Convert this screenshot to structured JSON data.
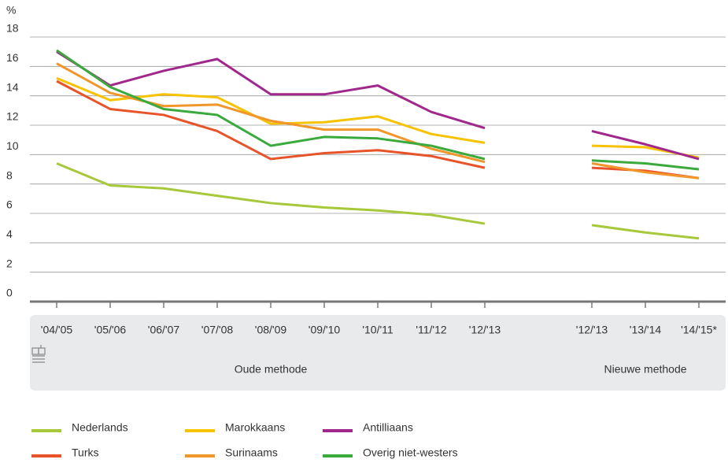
{
  "chart_data": {
    "type": "line",
    "y_label": "%",
    "categories": [
      "'04/'05",
      "'05/'06",
      "'06/'07",
      "'07/'08",
      "'08/'09",
      "'09/'10",
      "'10/'11",
      "'11/'12",
      "'12/'13",
      null,
      "'12/'13",
      "'13/'14",
      "'14/'15*"
    ],
    "series": [
      {
        "name": "Nederlands",
        "color": "#a8c83c",
        "values": [
          9.4,
          7.9,
          7.7,
          7.2,
          6.7,
          6.4,
          6.2,
          5.9,
          5.3,
          null,
          5.2,
          4.7,
          4.3
        ]
      },
      {
        "name": "Turks",
        "color": "#e8542a",
        "values": [
          15.0,
          13.1,
          12.7,
          11.6,
          9.7,
          10.1,
          10.3,
          9.9,
          9.1,
          null,
          9.1,
          8.9,
          8.4
        ]
      },
      {
        "name": "Marokkaans",
        "color": "#f7c200",
        "values": [
          15.2,
          13.7,
          14.1,
          13.9,
          12.1,
          12.2,
          12.6,
          11.4,
          10.8,
          null,
          10.6,
          10.5,
          9.8
        ]
      },
      {
        "name": "Surinaams",
        "color": "#f0962a",
        "values": [
          16.2,
          14.2,
          13.3,
          13.4,
          12.3,
          11.7,
          11.7,
          10.4,
          9.5,
          null,
          9.4,
          8.8,
          8.4
        ]
      },
      {
        "name": "Antilliaans",
        "color": "#a0288c",
        "values": [
          17.0,
          14.7,
          15.7,
          16.5,
          14.1,
          14.1,
          14.7,
          12.9,
          11.8,
          null,
          11.6,
          10.7,
          9.7
        ]
      },
      {
        "name": "Overig niet-westers",
        "color": "#3aaa3c",
        "values": [
          17.1,
          14.6,
          13.1,
          12.7,
          10.6,
          11.2,
          11.1,
          10.6,
          9.7,
          null,
          9.6,
          9.4,
          9.0
        ]
      }
    ],
    "ylim": [
      0,
      18
    ],
    "yticks": [
      0,
      2,
      4,
      6,
      8,
      10,
      12,
      14,
      16,
      18
    ],
    "grid": true,
    "annotations": [
      "Oude methode",
      "Nieuwe methode"
    ]
  }
}
